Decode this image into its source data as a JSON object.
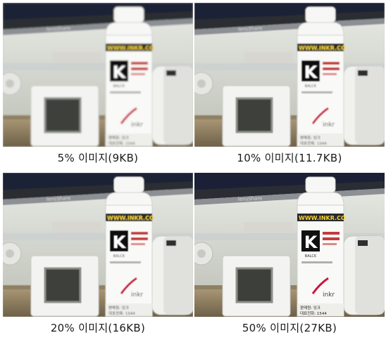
{
  "panels": [
    {
      "caption": "5% 이미지(9KB)",
      "blur": 1.1
    },
    {
      "caption": "10% 이미지(11.7KB)",
      "blur": 0.7
    },
    {
      "caption": "20% 이미지(16KB)",
      "blur": 0.4
    },
    {
      "caption": "50% 이미지(27KB)",
      "blur": 0.0
    }
  ],
  "bottle": {
    "url": "WWW.INKR.CO",
    "letter": "K",
    "color_word": "BALCK",
    "brand": "inkr",
    "footer_line1": "판매원: 잉크",
    "footer_line2": "대표전화: 1544"
  },
  "monitor_brand": "lensShare"
}
